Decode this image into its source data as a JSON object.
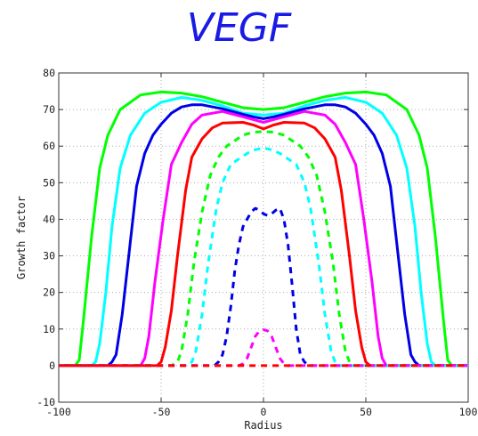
{
  "chart_data": {
    "type": "line",
    "title": "VEGF",
    "xlabel": "Radius",
    "ylabel": "Growth factor",
    "xlim": [
      -100,
      100
    ],
    "ylim": [
      -10,
      80
    ],
    "xticks": [
      -100,
      -50,
      0,
      50,
      100
    ],
    "yticks": [
      -10,
      0,
      10,
      20,
      30,
      40,
      50,
      60,
      70,
      80
    ],
    "grid": true,
    "series": [
      {
        "color": "#00ff00",
        "dash": false,
        "x": [
          -103,
          -92,
          -90,
          -88,
          -84,
          -80,
          -76,
          -70,
          -60,
          -50,
          -40,
          -30,
          -20,
          -10,
          0,
          10,
          20,
          30,
          40,
          50,
          60,
          70,
          76,
          80,
          84,
          88,
          90,
          92,
          103
        ],
        "y": [
          0,
          0,
          1.5,
          12,
          35,
          54,
          63,
          70,
          74,
          74.8,
          74.5,
          73.5,
          72,
          70.5,
          70,
          70.5,
          72,
          73.5,
          74.5,
          74.8,
          74,
          70,
          63,
          54,
          35,
          12,
          1.5,
          0,
          0
        ]
      },
      {
        "color": "#00ffff",
        "dash": false,
        "x": [
          -103,
          -84,
          -82,
          -80,
          -77,
          -74,
          -70,
          -65,
          -58,
          -50,
          -40,
          -30,
          -20,
          -10,
          0,
          10,
          20,
          30,
          40,
          50,
          58,
          65,
          70,
          74,
          77,
          80,
          82,
          84,
          103
        ],
        "y": [
          0,
          0,
          1,
          6,
          20,
          38,
          54,
          63,
          69,
          72,
          73.3,
          72.5,
          71,
          69,
          68.5,
          69,
          71,
          72.5,
          73.3,
          72,
          69,
          63,
          54,
          38,
          20,
          6,
          1,
          0,
          0
        ]
      },
      {
        "color": "#0000e6",
        "dash": false,
        "x": [
          -103,
          -76,
          -74,
          -72,
          -69,
          -65,
          -62,
          -58,
          -54,
          -50,
          -45,
          -40,
          -35,
          -30,
          -20,
          -10,
          -5,
          0,
          5,
          10,
          20,
          30,
          35,
          40,
          45,
          50,
          54,
          58,
          62,
          65,
          69,
          72,
          74,
          76,
          103
        ],
        "y": [
          0,
          0,
          1,
          3,
          14,
          34,
          49,
          58,
          63,
          66,
          69,
          70.7,
          71.3,
          71.3,
          70.2,
          68.7,
          68,
          67.5,
          68,
          68.7,
          70.2,
          71.3,
          71.3,
          70.7,
          69,
          66,
          63,
          58,
          49,
          34,
          14,
          3,
          1,
          0,
          0
        ]
      },
      {
        "color": "#ff00ff",
        "dash": false,
        "x": [
          -103,
          -60,
          -58,
          -56,
          -53,
          -49,
          -45,
          -40,
          -35,
          -30,
          -20,
          -10,
          0,
          10,
          20,
          30,
          35,
          40,
          45,
          49,
          53,
          56,
          58,
          60,
          103
        ],
        "y": [
          0,
          0,
          2,
          8,
          23,
          40,
          55,
          61,
          66,
          68.5,
          69.5,
          68,
          66.5,
          68,
          69.5,
          68.5,
          66,
          61,
          55,
          40,
          23,
          8,
          2,
          0,
          0
        ]
      },
      {
        "color": "#ff0000",
        "dash": false,
        "x": [
          -103,
          -52,
          -50,
          -48,
          -45,
          -42,
          -38,
          -35,
          -30,
          -25,
          -20,
          -10,
          -5,
          0,
          5,
          10,
          20,
          25,
          30,
          35,
          38,
          42,
          45,
          48,
          50,
          52,
          103
        ],
        "y": [
          0,
          0,
          1,
          5,
          15,
          30,
          48,
          57,
          62,
          65,
          66.3,
          66.5,
          65.8,
          64.7,
          65.8,
          66.5,
          66.3,
          65,
          62,
          57,
          48,
          30,
          15,
          5,
          1,
          0,
          0
        ]
      },
      {
        "color": "#00ff00",
        "dash": true,
        "x": [
          -103,
          -45,
          -42,
          -40,
          -37,
          -34,
          -30,
          -26,
          -22,
          -18,
          -14,
          -10,
          -5,
          0,
          5,
          10,
          14,
          18,
          22,
          26,
          30,
          34,
          37,
          40,
          42,
          45,
          103
        ],
        "y": [
          0,
          0,
          1,
          4,
          14,
          28,
          42,
          52,
          57,
          60,
          61.5,
          63,
          63.8,
          64,
          63.8,
          63,
          61.5,
          60,
          57,
          52,
          42,
          28,
          14,
          4,
          1,
          0,
          0
        ]
      },
      {
        "color": "#00ffff",
        "dash": true,
        "x": [
          -103,
          -37,
          -35,
          -33,
          -30,
          -27,
          -23,
          -20,
          -16,
          -12,
          -8,
          -4,
          0,
          4,
          8,
          12,
          16,
          20,
          23,
          27,
          30,
          33,
          35,
          37,
          103
        ],
        "y": [
          0,
          0,
          1,
          4,
          14,
          28,
          43,
          50,
          55,
          56.5,
          58,
          59,
          59.5,
          59,
          58,
          56.5,
          55,
          50,
          43,
          28,
          14,
          4,
          1,
          0,
          0
        ]
      },
      {
        "color": "#0000e6",
        "dash": true,
        "x": [
          -103,
          -24,
          -22,
          -20,
          -18,
          -16,
          -14,
          -12,
          -10,
          -8,
          -6,
          -4,
          -2,
          0,
          2,
          4,
          6,
          8,
          10,
          12,
          14,
          16,
          18,
          20,
          22,
          24,
          103
        ],
        "y": [
          0,
          0,
          1,
          3,
          8,
          16,
          26,
          33,
          38,
          40,
          42,
          43,
          42.5,
          41.5,
          41,
          41.5,
          42.5,
          43,
          40,
          33,
          22,
          10,
          3,
          1,
          0,
          0,
          0
        ]
      },
      {
        "color": "#ff00ff",
        "dash": true,
        "x": [
          -103,
          -12,
          -10,
          -8,
          -6,
          -4,
          -2,
          0,
          2,
          4,
          6,
          8,
          10,
          12,
          103
        ],
        "y": [
          0,
          0,
          0.5,
          2,
          5,
          8,
          9.5,
          9.8,
          9.5,
          8,
          5,
          2,
          0.5,
          0,
          0
        ]
      },
      {
        "color": "#ff0000",
        "dash": true,
        "x": [
          -103,
          -80,
          -60,
          -40,
          -20,
          0,
          20,
          40,
          60,
          80,
          103
        ],
        "y": [
          0,
          0,
          0,
          0,
          0,
          0,
          0,
          0,
          0,
          0,
          0
        ]
      }
    ]
  }
}
